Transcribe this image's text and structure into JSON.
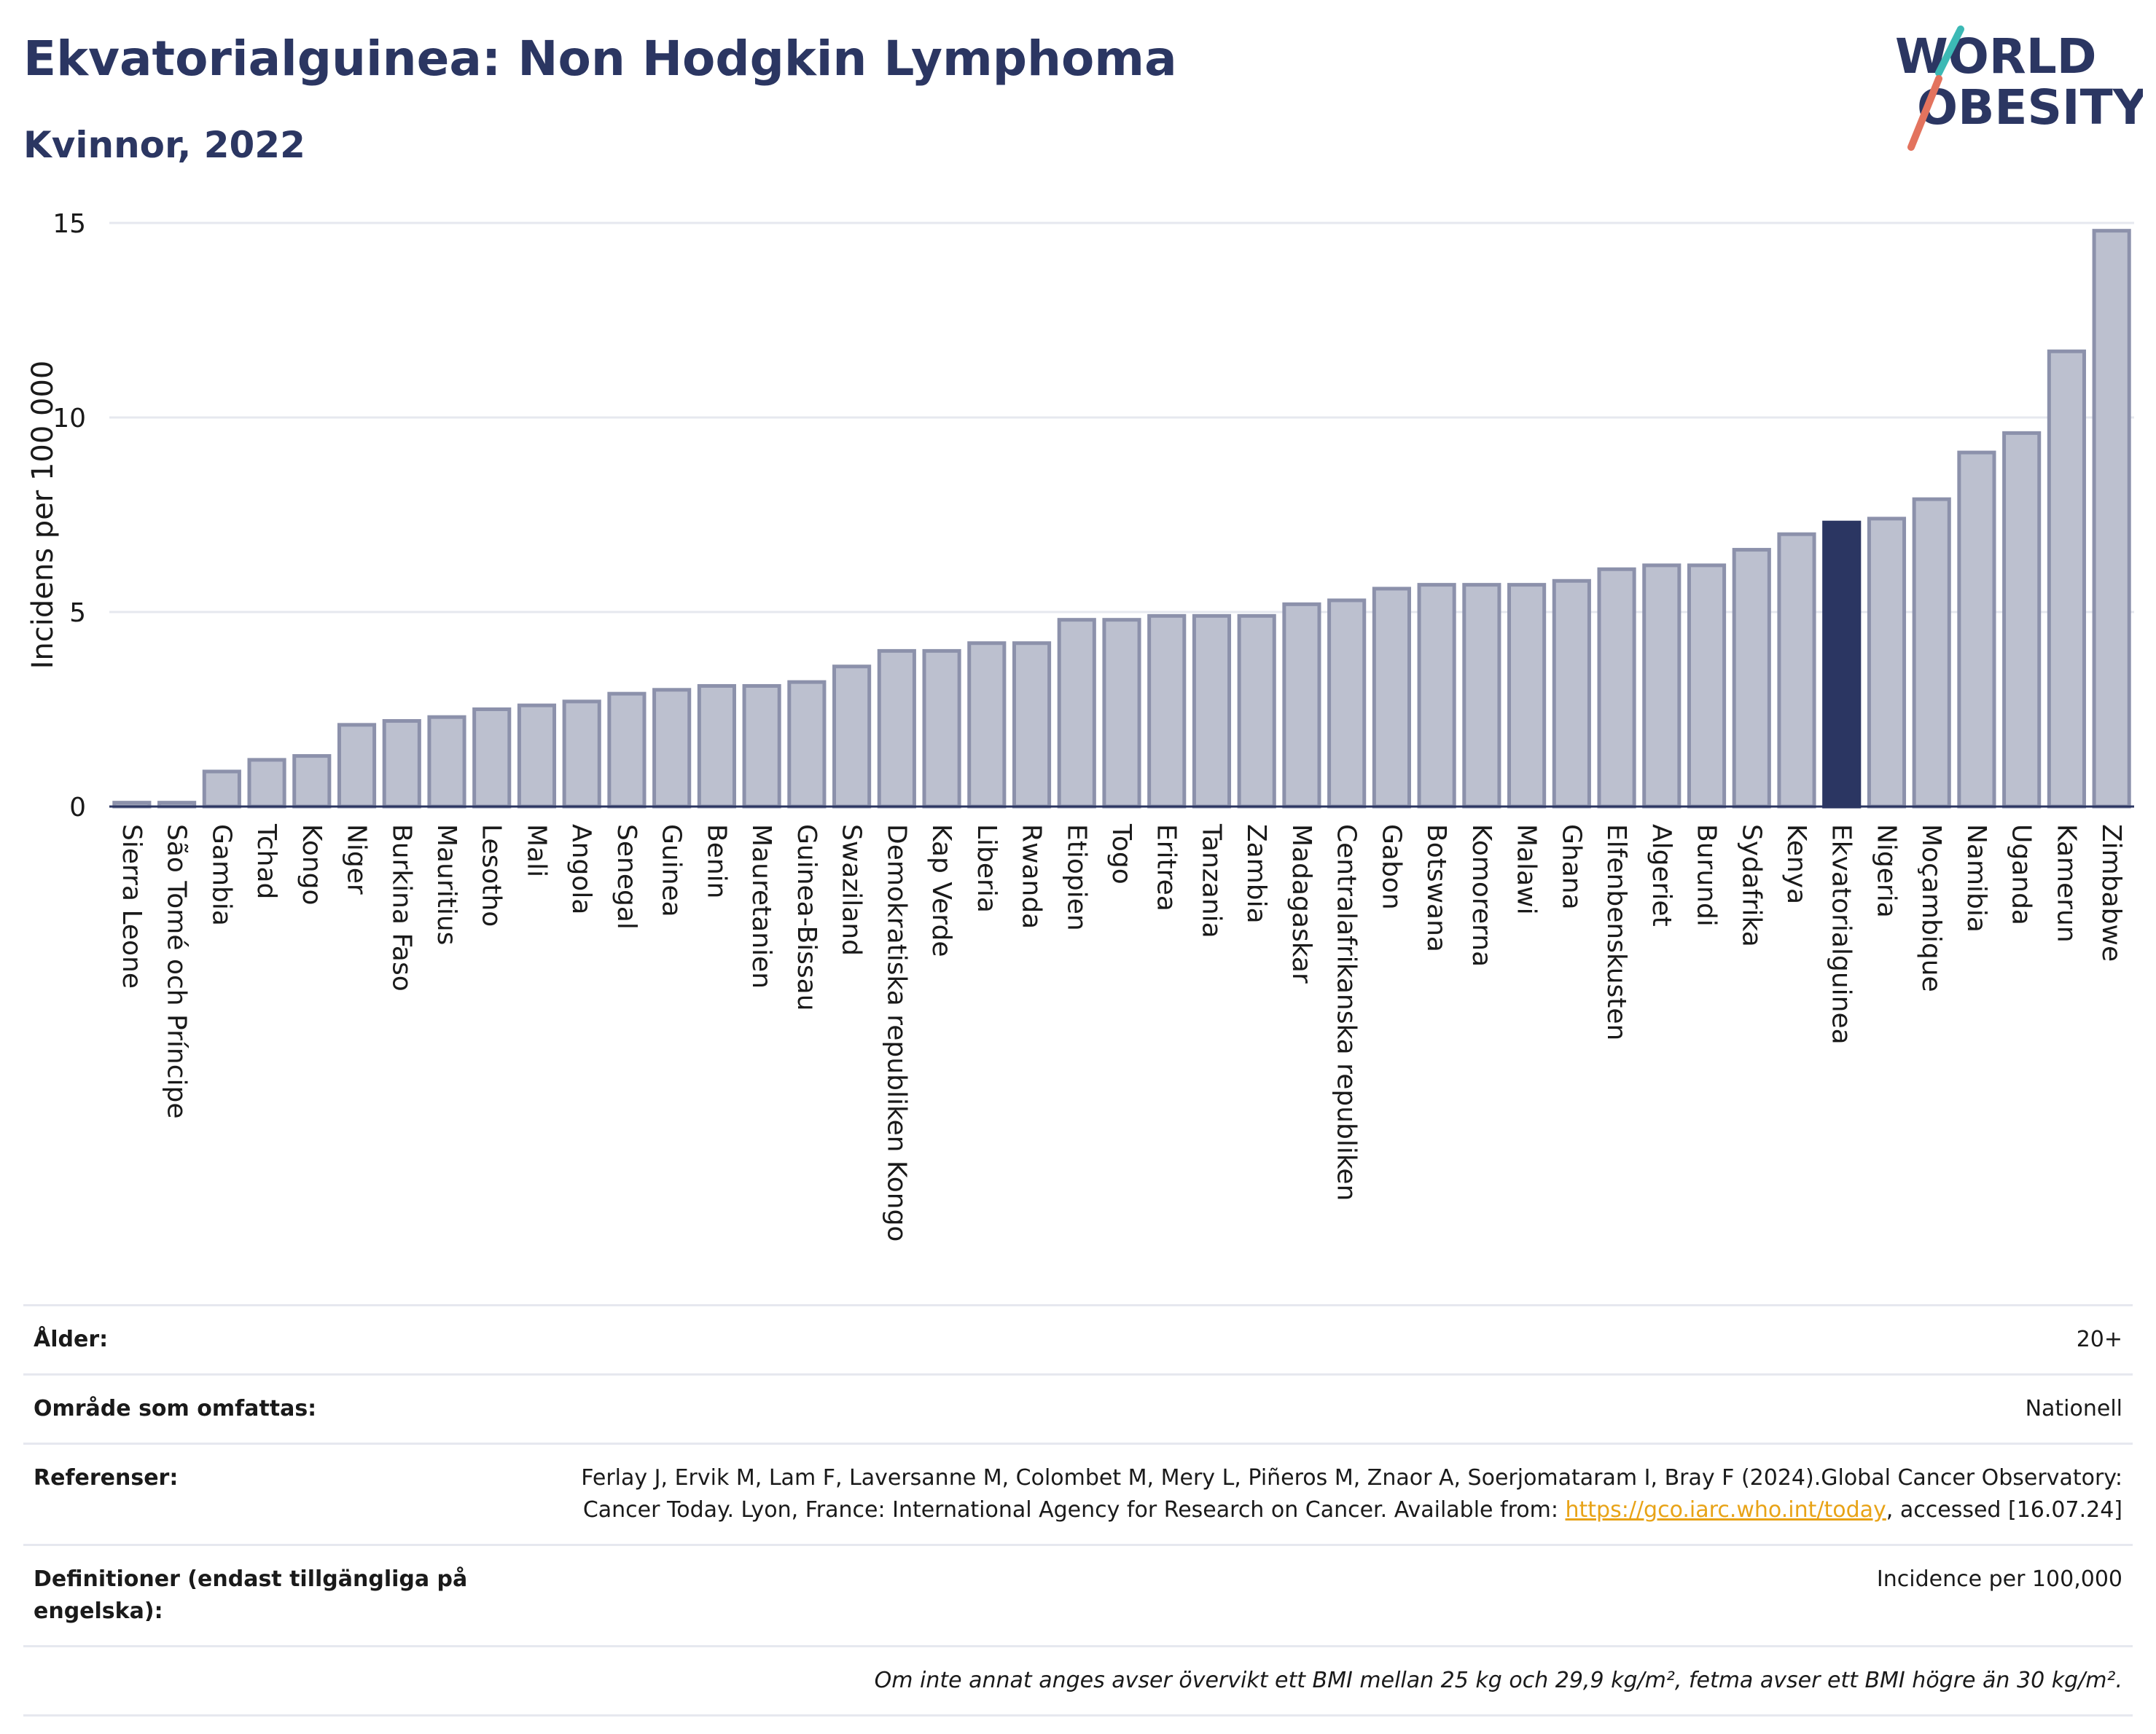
{
  "header": {
    "title": "Ekvatorialguinea: Non Hodgkin Lymphoma",
    "subtitle": "Kvinnor, 2022"
  },
  "logo": {
    "line1": "WORLD",
    "line2": "OBESITY"
  },
  "colors": {
    "bar": "#bcc0cf",
    "bar_border": "#8c91ab",
    "highlight": "#2b3662",
    "title": "#2b3662"
  },
  "chart_data": {
    "type": "bar",
    "title": "Ekvatorialguinea: Non Hodgkin Lymphoma",
    "subtitle": "Kvinnor, 2022",
    "ylabel": "Incidens per 100 000",
    "xlabel": "",
    "ylim": [
      0,
      15
    ],
    "yticks": [
      0,
      5,
      10,
      15
    ],
    "grid": true,
    "highlight": "Ekvatorialguinea",
    "categories": [
      "Sierra Leone",
      "São Tomé och Príncipe",
      "Gambia",
      "Tchad",
      "Kongo",
      "Niger",
      "Burkina Faso",
      "Mauritius",
      "Lesotho",
      "Mali",
      "Angola",
      "Senegal",
      "Guinea",
      "Benin",
      "Mauretanien",
      "Guinea-Bissau",
      "Swaziland",
      "Demokratiska republiken Kongo",
      "Kap Verde",
      "Liberia",
      "Rwanda",
      "Etiopien",
      "Togo",
      "Eritrea",
      "Tanzania",
      "Zambia",
      "Madagaskar",
      "Centralafrikanska republiken",
      "Gabon",
      "Botswana",
      "Komorerna",
      "Malawi",
      "Ghana",
      "Elfenbenskusten",
      "Algeriet",
      "Burundi",
      "Sydafrika",
      "Kenya",
      "Ekvatorialguinea",
      "Nigeria",
      "Moçambique",
      "Namibia",
      "Uganda",
      "Kamerun",
      "Zimbabwe"
    ],
    "values": [
      0.1,
      0.1,
      0.9,
      1.2,
      1.3,
      2.1,
      2.2,
      2.3,
      2.5,
      2.6,
      2.7,
      2.9,
      3.0,
      3.1,
      3.1,
      3.2,
      3.6,
      4.0,
      4.0,
      4.2,
      4.2,
      4.8,
      4.8,
      4.9,
      4.9,
      4.9,
      5.2,
      5.3,
      5.6,
      5.7,
      5.7,
      5.7,
      5.8,
      6.1,
      6.2,
      6.2,
      6.6,
      7.0,
      7.3,
      7.4,
      7.9,
      9.1,
      9.6,
      11.7,
      14.8
    ]
  },
  "meta": {
    "age_label": "Ålder:",
    "age_value": "20+",
    "area_label": "Område som omfattas:",
    "area_value": "Nationell",
    "refs_label": "Referenser:",
    "refs_text": "Ferlay J, Ervik M, Lam F, Laversanne M, Colombet M, Mery L, Piñeros M, Znaor A, Soerjomataram I, Bray F (2024).Global Cancer Observatory: Cancer Today. Lyon, France: International Agency for Research on Cancer. Available from: ",
    "refs_link": "https://gco.iarc.who.int/today",
    "refs_tail": ", accessed [16.07.24]",
    "defs_label": "Definitioner (endast tillgängliga på engelska):",
    "defs_value": "Incidence per 100,000",
    "note": "Om inte annat anges avser övervikt ett BMI mellan 25 kg och 29,9 kg/m², fetma avser ett BMI högre än 30 kg/m²."
  }
}
